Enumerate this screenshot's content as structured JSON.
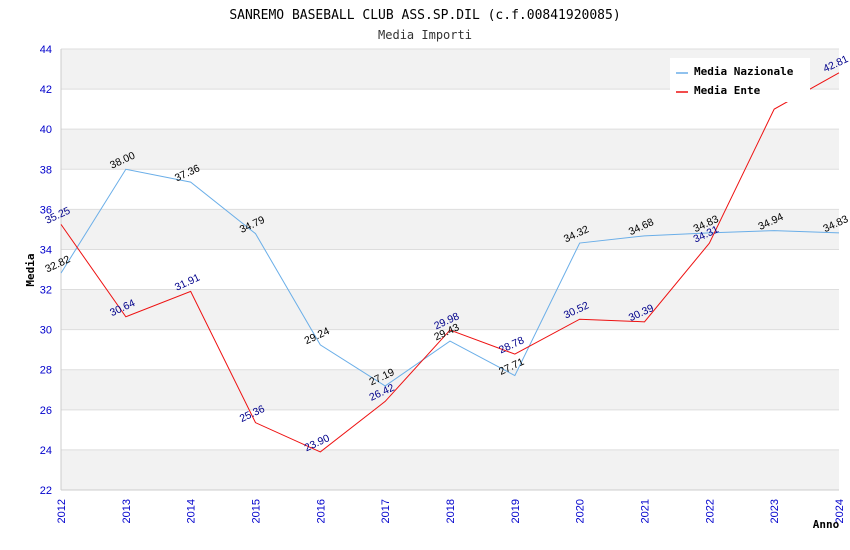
{
  "chart_data": {
    "type": "line",
    "title": "SANREMO BASEBALL CLUB ASS.SP.DIL (c.f.00841920085)",
    "subtitle": "Media Importi",
    "xlabel": "Anno",
    "ylabel": "Media",
    "categories": [
      "2012",
      "2013",
      "2014",
      "2015",
      "2016",
      "2017",
      "2018",
      "2019",
      "2020",
      "2021",
      "2022",
      "2023",
      "2024"
    ],
    "ylim": [
      22,
      44
    ],
    "yticks": [
      22,
      24,
      26,
      28,
      30,
      32,
      34,
      36,
      38,
      40,
      42,
      44
    ],
    "grid": "horizontal alternating bands",
    "legend_position": "top-right",
    "series": [
      {
        "name": "Media Nazionale",
        "color": "#6aaee8",
        "label_color": "#000000",
        "values": [
          32.82,
          38.0,
          37.36,
          34.79,
          29.24,
          27.19,
          29.43,
          27.71,
          34.32,
          34.68,
          34.83,
          34.94,
          34.83
        ],
        "labels": [
          "32.82",
          "38.00",
          "37.36",
          "34.79",
          "29.24",
          "27.19",
          "29.43",
          "27.71",
          "34.32",
          "34.68",
          "34.83",
          "34.94",
          "34.83"
        ]
      },
      {
        "name": "Media Ente",
        "color": "#ee1111",
        "label_color": "#00008b",
        "values": [
          35.25,
          30.64,
          31.91,
          25.36,
          23.9,
          26.42,
          29.98,
          28.78,
          30.52,
          30.39,
          34.31,
          41.0,
          42.81
        ],
        "labels": [
          "35.25",
          "30.64",
          "31.91",
          "25.36",
          "23.90",
          "26.42",
          "29.98",
          "28.78",
          "30.52",
          "30.39",
          "34.31",
          "",
          "42.81"
        ]
      }
    ]
  }
}
